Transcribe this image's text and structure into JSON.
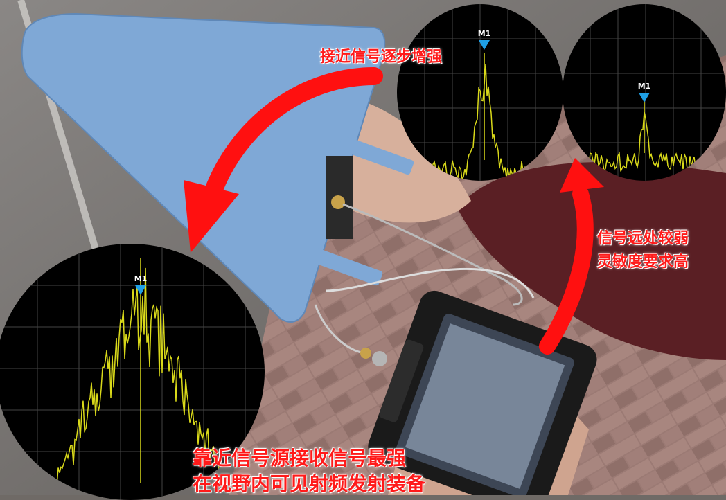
{
  "captions": {
    "near_stronger": "接近信号逐步增强",
    "far_weak_line1": "信号远处较弱",
    "far_weak_line2": "灵敏度要求高",
    "closest_line1": "靠近信号源接收信号最强",
    "closest_line2": "在视野内可见射频发射装备"
  },
  "markers": {
    "left": "M1",
    "top_center": "M1",
    "top_right": "M1"
  },
  "colors": {
    "caption": "#ff1a1a",
    "arrow": "#ff1010",
    "trace": "#d9d91a",
    "marker": "#1fa0e6",
    "antenna": "#7fa8d6"
  },
  "icons": {
    "arrow_left": "curved-arrow-down-left-icon",
    "arrow_right": "curved-arrow-up-icon"
  }
}
